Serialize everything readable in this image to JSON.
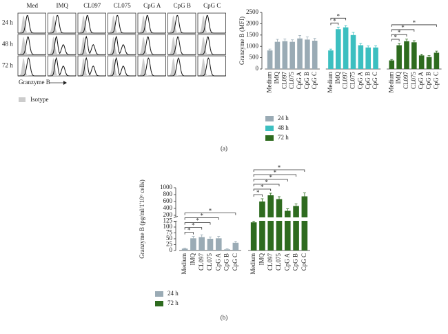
{
  "histograms": {
    "columns": [
      "Med",
      "IMQ",
      "CL097",
      "CL075",
      "CpG A",
      "CpG B",
      "CpG C"
    ],
    "rows": [
      "24 h",
      "48 h",
      "72 h"
    ],
    "x_label": "Granzyme B",
    "legend": "Isotype"
  },
  "panel_labels": [
    "(a)",
    "(b)"
  ],
  "chart_data": [
    {
      "type": "bar",
      "ylabel": "Granzyme B (MFI)",
      "categories": [
        "Medium",
        "IMQ",
        "CL097",
        "CL075",
        "CpG A",
        "CpG B",
        "CpG C"
      ],
      "series": [
        {
          "name": "24 h",
          "color": "#9aabb5",
          "values": [
            820,
            1200,
            1230,
            1200,
            1350,
            1300,
            1250
          ],
          "errors": [
            60,
            110,
            100,
            90,
            130,
            120,
            100
          ]
        },
        {
          "name": "48 h",
          "color": "#3cbfc0",
          "values": [
            820,
            1760,
            1840,
            1500,
            1050,
            950,
            950
          ],
          "errors": [
            60,
            90,
            80,
            120,
            80,
            70,
            80
          ]
        },
        {
          "name": "72 h",
          "color": "#2e6b1f",
          "values": [
            380,
            1050,
            1230,
            1180,
            600,
            530,
            720
          ],
          "errors": [
            40,
            80,
            90,
            70,
            50,
            60,
            70
          ]
        }
      ],
      "ylim": [
        0,
        2500
      ],
      "yticks": [
        0,
        500,
        1000,
        1500,
        2000,
        2500
      ],
      "significance": [
        {
          "series": "48 h",
          "from": "Medium",
          "to": "IMQ",
          "label": "*"
        },
        {
          "series": "48 h",
          "from": "Medium",
          "to": "CL097",
          "label": "*"
        },
        {
          "series": "72 h",
          "from": "Medium",
          "to": "IMQ",
          "label": "*"
        },
        {
          "series": "72 h",
          "from": "Medium",
          "to": "CL097",
          "label": "*"
        },
        {
          "series": "72 h",
          "from": "Medium",
          "to": "CL075",
          "label": "*"
        },
        {
          "series": "72 h",
          "from": "Medium",
          "to": "CpG C",
          "label": "*"
        }
      ]
    },
    {
      "type": "bar",
      "ylabel": "Granzyme B (pg/ml/1'10⁶ cells)",
      "categories": [
        "Medium",
        "IMQ",
        "CL097",
        "CL075",
        "CpG A",
        "CpG B",
        "CpG C"
      ],
      "series": [
        {
          "name": "24 h",
          "color": "#9aabb5",
          "values": [
            8,
            52,
            57,
            50,
            52,
            5,
            33
          ],
          "errors": [
            2,
            8,
            10,
            8,
            8,
            2,
            6
          ]
        },
        {
          "name": "72 h",
          "color": "#2e6b1f",
          "values": [
            120,
            600,
            780,
            670,
            330,
            470,
            750
          ],
          "errors": [
            5,
            80,
            60,
            70,
            60,
            60,
            100
          ]
        }
      ],
      "y_segments": [
        {
          "ylim": [
            0,
            125
          ],
          "yticks": [
            0,
            25,
            50,
            75,
            100,
            125
          ]
        },
        {
          "ylim": [
            150,
            1000
          ],
          "yticks": [
            200,
            400,
            600,
            800,
            1000
          ]
        }
      ],
      "significance": [
        {
          "series": "24 h",
          "from": "Medium",
          "to": "IMQ",
          "label": "*"
        },
        {
          "series": "24 h",
          "from": "Medium",
          "to": "CL097",
          "label": "*"
        },
        {
          "series": "24 h",
          "from": "Medium",
          "to": "CL075",
          "label": "*"
        },
        {
          "series": "24 h",
          "from": "Medium",
          "to": "CpG A",
          "label": "*"
        },
        {
          "series": "24 h",
          "from": "Medium",
          "to": "CpG C",
          "label": "*"
        },
        {
          "series": "72 h",
          "from": "Medium",
          "to": "IMQ",
          "label": "*"
        },
        {
          "series": "72 h",
          "from": "Medium",
          "to": "CL097",
          "label": "*"
        },
        {
          "series": "72 h",
          "from": "Medium",
          "to": "CL075",
          "label": "*"
        },
        {
          "series": "72 h",
          "from": "Medium",
          "to": "CpG A",
          "label": "*"
        },
        {
          "series": "72 h",
          "from": "Medium",
          "to": "CpG B",
          "label": "*"
        },
        {
          "series": "72 h",
          "from": "Medium",
          "to": "CpG C",
          "label": "*"
        }
      ]
    }
  ]
}
